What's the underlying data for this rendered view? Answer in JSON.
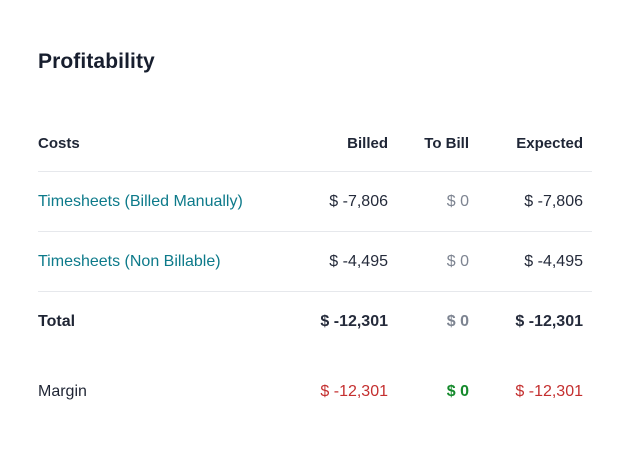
{
  "page": {
    "title": "Profitability"
  },
  "table": {
    "columns": {
      "costs": "Costs",
      "billed": "Billed",
      "to_bill": "To Bill",
      "expected": "Expected"
    },
    "rows": [
      {
        "label": "Timesheets (Billed Manually)",
        "billed": "$ -7,806",
        "to_bill": "$ 0",
        "expected": "$ -7,806"
      },
      {
        "label": "Timesheets (Non Billable)",
        "billed": "$ -4,495",
        "to_bill": "$ 0",
        "expected": "$ -4,495"
      }
    ],
    "total": {
      "label": "Total",
      "billed": "$ -12,301",
      "to_bill": "$ 0",
      "expected": "$ -12,301"
    },
    "margin": {
      "label": "Margin",
      "billed": "$ -12,301",
      "to_bill": "$ 0",
      "expected": "$ -12,301"
    }
  },
  "colors": {
    "link_teal": "#0d7a8a",
    "negative_red": "#c42f2f",
    "positive_green": "#158a2c",
    "muted_gray": "#7d8491",
    "text_dark": "#252b3b",
    "divider": "#e6e8ec"
  }
}
